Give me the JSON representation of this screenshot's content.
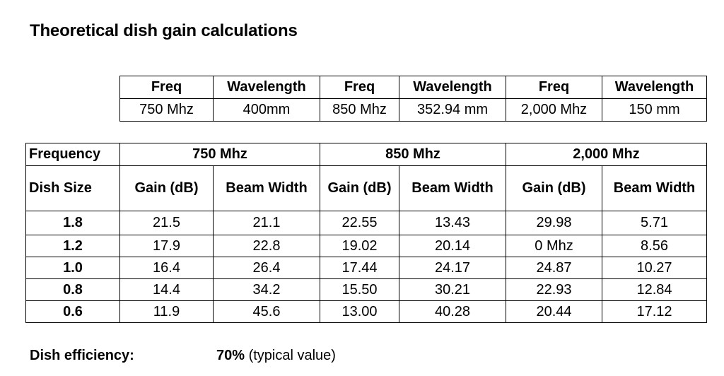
{
  "title": "Theoretical dish gain calculations",
  "freq_table": {
    "headers": [
      "Freq",
      "Wavelength",
      "Freq",
      "Wavelength",
      "Freq",
      "Wavelength"
    ],
    "values": [
      "750 Mhz",
      "400mm",
      "850 Mhz",
      "352.94 mm",
      "2,000 Mhz",
      "150 mm"
    ]
  },
  "gain_table": {
    "frequency_label": "Frequency",
    "dish_size_label": "Dish Size",
    "bands": [
      "750 Mhz",
      "850 Mhz",
      "2,000 Mhz"
    ],
    "sub_headers": [
      "Gain (dB)",
      "Beam Width",
      "Gain (dB)",
      "Beam Width",
      "Gain (dB)",
      "Beam Width"
    ],
    "rows": [
      {
        "size": "1.8",
        "cells": [
          "21.5",
          "21.1",
          "22.55",
          "13.43",
          "29.98",
          "5.71"
        ]
      },
      {
        "size": "1.2",
        "cells": [
          "17.9",
          "22.8",
          "19.02",
          "20.14",
          "0 Mhz",
          "8.56"
        ]
      },
      {
        "size": "1.0",
        "cells": [
          "16.4",
          "26.4",
          "17.44",
          "24.17",
          "24.87",
          "10.27"
        ]
      },
      {
        "size": "0.8",
        "cells": [
          "14.4",
          "34.2",
          "15.50",
          "30.21",
          "22.93",
          "12.84"
        ]
      },
      {
        "size": "0.6",
        "cells": [
          "11.9",
          "45.6",
          "13.00",
          "40.28",
          "20.44",
          "17.12"
        ]
      }
    ]
  },
  "footer": {
    "label": "Dish efficiency:",
    "value": "70%",
    "note": " (typical value)"
  }
}
